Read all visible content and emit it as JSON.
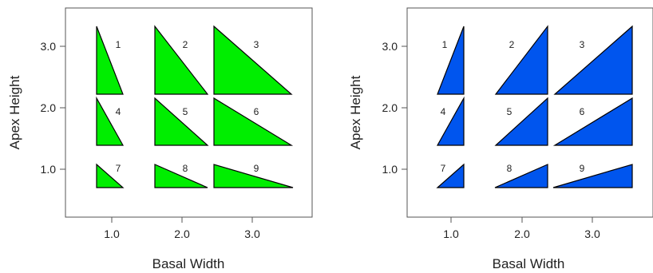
{
  "panels": [
    {
      "id": "left",
      "fill": "#00ee00",
      "orientation": "right-angle-left",
      "xlabel": "Basal Width",
      "ylabel": "Apex Height",
      "x_ticks": [
        "1.0",
        "2.0",
        "3.0"
      ],
      "y_ticks": [
        "3.0",
        "2.0",
        "1.0"
      ],
      "triangles": [
        {
          "label": "1"
        },
        {
          "label": "2"
        },
        {
          "label": "3"
        },
        {
          "label": "4"
        },
        {
          "label": "5"
        },
        {
          "label": "6"
        },
        {
          "label": "7"
        },
        {
          "label": "8"
        },
        {
          "label": "9"
        }
      ]
    },
    {
      "id": "right",
      "fill": "#0055ee",
      "orientation": "right-angle-right",
      "xlabel": "Basal Width",
      "ylabel": "Apex Height",
      "x_ticks": [
        "1.0",
        "2.0",
        "3.0"
      ],
      "y_ticks": [
        "3.0",
        "2.0",
        "1.0"
      ],
      "triangles": [
        {
          "label": "1"
        },
        {
          "label": "2"
        },
        {
          "label": "3"
        },
        {
          "label": "4"
        },
        {
          "label": "5"
        },
        {
          "label": "6"
        },
        {
          "label": "7"
        },
        {
          "label": "8"
        },
        {
          "label": "9"
        }
      ]
    }
  ]
}
